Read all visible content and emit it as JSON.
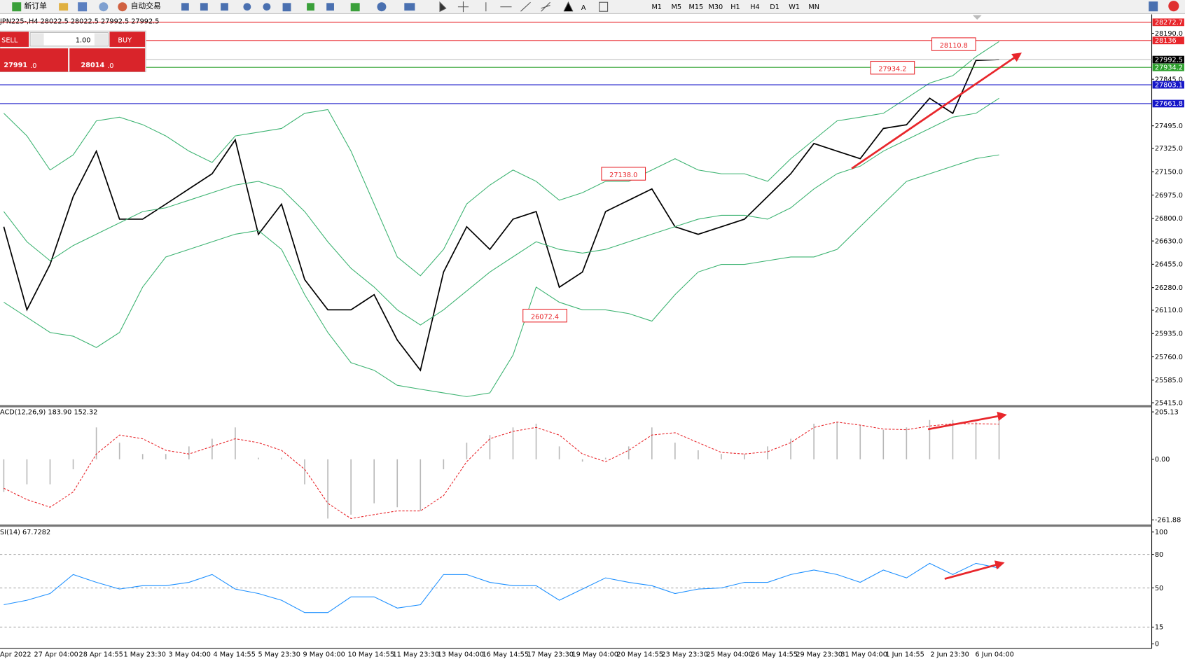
{
  "toolbar": {
    "new_order": "新订单",
    "auto_trade": "自动交易",
    "timeframes": [
      "M1",
      "M5",
      "M15",
      "M30",
      "H1",
      "H4",
      "D1",
      "W1",
      "MN"
    ]
  },
  "trade_panel": {
    "sell": "SELL",
    "buy": "BUY",
    "volume": "1.00",
    "bid_main": "27991",
    "bid_frac": ".0",
    "ask_main": "28014",
    "ask_frac": ".0"
  },
  "chart_data": [
    {
      "type": "line",
      "title": "JPN225-,H4  28022.5 28022.5 27992.5 27992.5",
      "ylim": [
        25392,
        28315
      ],
      "yticks": [
        {
          "value": 28190,
          "label": "28190.0"
        },
        {
          "value": 27845,
          "label": "27845.0"
        },
        {
          "value": 27495,
          "label": "27495.0"
        },
        {
          "value": 27325,
          "label": "27325.0"
        },
        {
          "value": 27150,
          "label": "27150.0"
        },
        {
          "value": 26975,
          "label": "26975.0"
        },
        {
          "value": 26800,
          "label": "26800.0"
        },
        {
          "value": 26630,
          "label": "26630.0"
        },
        {
          "value": 26455,
          "label": "26455.0"
        },
        {
          "value": 26280,
          "label": "26280.0"
        },
        {
          "value": 26110,
          "label": "26110.0"
        },
        {
          "value": 25935,
          "label": "25935.0"
        },
        {
          "value": 25760,
          "label": "25760.0"
        },
        {
          "value": 25585,
          "label": "25585.0"
        },
        {
          "value": 25415,
          "label": "25415.0"
        }
      ],
      "x_labels": [
        "Apr 2022",
        "27 Apr 04:00",
        "28 Apr 14:55",
        "1 May 23:30",
        "3 May 04:00",
        "4 May 14:55",
        "5 May 23:30",
        "9 May 04:00",
        "10 May 14:55",
        "11 May 23:30",
        "13 May 04:00",
        "16 May 14:55",
        "17 May 23:30",
        "19 May 04:00",
        "20 May 14:55",
        "23 May 23:30",
        "25 May 04:00",
        "26 May 14:55",
        "29 May 23:30",
        "31 May 04:00",
        "1 Jun 14:55",
        "2 Jun 23:30",
        "6 Jun 04:00"
      ],
      "series": [
        {
          "name": "Close",
          "color": "#000000",
          "values": [
            26737,
            26113,
            26454,
            26964,
            27305,
            26794,
            26794,
            26907,
            27021,
            27135,
            27390,
            26680,
            26907,
            26340,
            26113,
            26113,
            26227,
            25886,
            25659,
            26397,
            26737,
            26567,
            26794,
            26851,
            26283,
            26397,
            26851,
            26936,
            27021,
            26737,
            26680,
            26737,
            26794,
            26964,
            27135,
            27362,
            27305,
            27248,
            27475,
            27503,
            27702,
            27589,
            27986,
            27992.5
          ]
        },
        {
          "name": "BB Upper",
          "color": "#3cb371",
          "values": [
            27589,
            27419,
            27163,
            27277,
            27532,
            27560,
            27504,
            27419,
            27305,
            27220,
            27419,
            27447,
            27475,
            27589,
            27617,
            27305,
            26908,
            26510,
            26369,
            26567,
            26908,
            27050,
            27163,
            27078,
            26936,
            26993,
            27078,
            27078,
            27163,
            27248,
            27163,
            27135,
            27135,
            27078,
            27248,
            27390,
            27532,
            27560,
            27589,
            27702,
            27816,
            27872,
            28014,
            28128
          ]
        },
        {
          "name": "BB Middle",
          "color": "#3cb371",
          "values": [
            26851,
            26624,
            26482,
            26596,
            26681,
            26766,
            26851,
            26879,
            26936,
            26993,
            27050,
            27078,
            27021,
            26851,
            26624,
            26425,
            26284,
            26113,
            25999,
            26113,
            26255,
            26397,
            26511,
            26624,
            26567,
            26539,
            26567,
            26624,
            26681,
            26738,
            26794,
            26823,
            26823,
            26794,
            26879,
            27021,
            27135,
            27192,
            27305,
            27390,
            27475,
            27560,
            27589,
            27702
          ]
        },
        {
          "name": "BB Lower",
          "color": "#3cb371",
          "values": [
            26170,
            26057,
            25943,
            25915,
            25830,
            25943,
            26284,
            26510,
            26567,
            26624,
            26681,
            26709,
            26567,
            26227,
            25943,
            25716,
            25659,
            25546,
            25517,
            25489,
            25461,
            25489,
            25773,
            26284,
            26170,
            26113,
            26113,
            26085,
            26028,
            26227,
            26397,
            26454,
            26454,
            26482,
            26510,
            26510,
            26567,
            26738,
            26908,
            27078,
            27135,
            27192,
            27249,
            27277
          ]
        }
      ],
      "price_levels": [
        {
          "value": 28272.7,
          "color": "#e8262b"
        },
        {
          "value": 28136.0,
          "color": "#e8262b"
        },
        {
          "value": 27992.5,
          "color": "#000000"
        },
        {
          "value": 27934.2,
          "color": "#2ca02c"
        },
        {
          "value": 27803.1,
          "color": "#1515c8"
        },
        {
          "value": 27661.8,
          "color": "#1515c8"
        }
      ],
      "annotations": [
        {
          "value": 28110.8,
          "label": "28110.8"
        },
        {
          "value": 27934.2,
          "label": "27934.2"
        },
        {
          "value": 27138,
          "label": "27138.0"
        },
        {
          "value": 26072.4,
          "label": "26072.4"
        }
      ]
    },
    {
      "type": "histogram",
      "title": "ACD(12,26,9) 183.90 152.32",
      "ylim": [
        -281.6,
        221.5
      ],
      "yticks": [
        205.13,
        {
          "value": 0,
          "label": "0.00"
        },
        -261.88
      ],
      "series": [
        {
          "name": "MACD",
          "color": "#b8b8b8",
          "style": "histogram",
          "values": [
            -141,
            -108,
            -108,
            -43,
            138,
            72,
            23,
            23,
            56,
            89,
            138,
            7,
            7,
            -108,
            -256,
            -239,
            -190,
            -207,
            -223,
            -43,
            72,
            105,
            138,
            154,
            56,
            -10,
            7,
            56,
            138,
            72,
            39,
            23,
            23,
            56,
            89,
            154,
            161,
            148,
            128,
            138,
            170,
            170,
            161,
            183.9
          ]
        },
        {
          "name": "Signal",
          "color": "#e8262b",
          "style": "dashed",
          "values": [
            -125,
            -174,
            -207,
            -141,
            23,
            105,
            89,
            39,
            23,
            56,
            89,
            72,
            39,
            -43,
            -190,
            -256,
            -239,
            -223,
            -223,
            -157,
            -10,
            89,
            121,
            138,
            105,
            23,
            -10,
            39,
            105,
            115,
            72,
            30,
            23,
            33,
            72,
            138,
            161,
            148,
            131,
            128,
            144,
            154,
            154,
            152.32
          ]
        }
      ]
    },
    {
      "type": "line",
      "title": "SI(14) 67.7282",
      "ylim": [
        -4.05,
        104.7
      ],
      "yticks": [
        100,
        80,
        50,
        15,
        0
      ],
      "grid": true,
      "series": [
        {
          "name": "RSI",
          "color": "#1e90ff",
          "values": [
            35,
            39,
            45,
            62,
            55,
            49,
            52,
            52,
            55,
            62,
            49,
            45,
            39,
            28,
            28,
            42,
            42,
            32,
            35,
            62,
            62,
            55,
            52,
            52,
            39,
            49,
            59,
            55,
            52,
            45,
            49,
            50,
            55,
            55,
            62,
            66,
            62,
            55,
            66,
            59,
            72,
            62,
            72,
            67.7282
          ]
        }
      ]
    }
  ]
}
